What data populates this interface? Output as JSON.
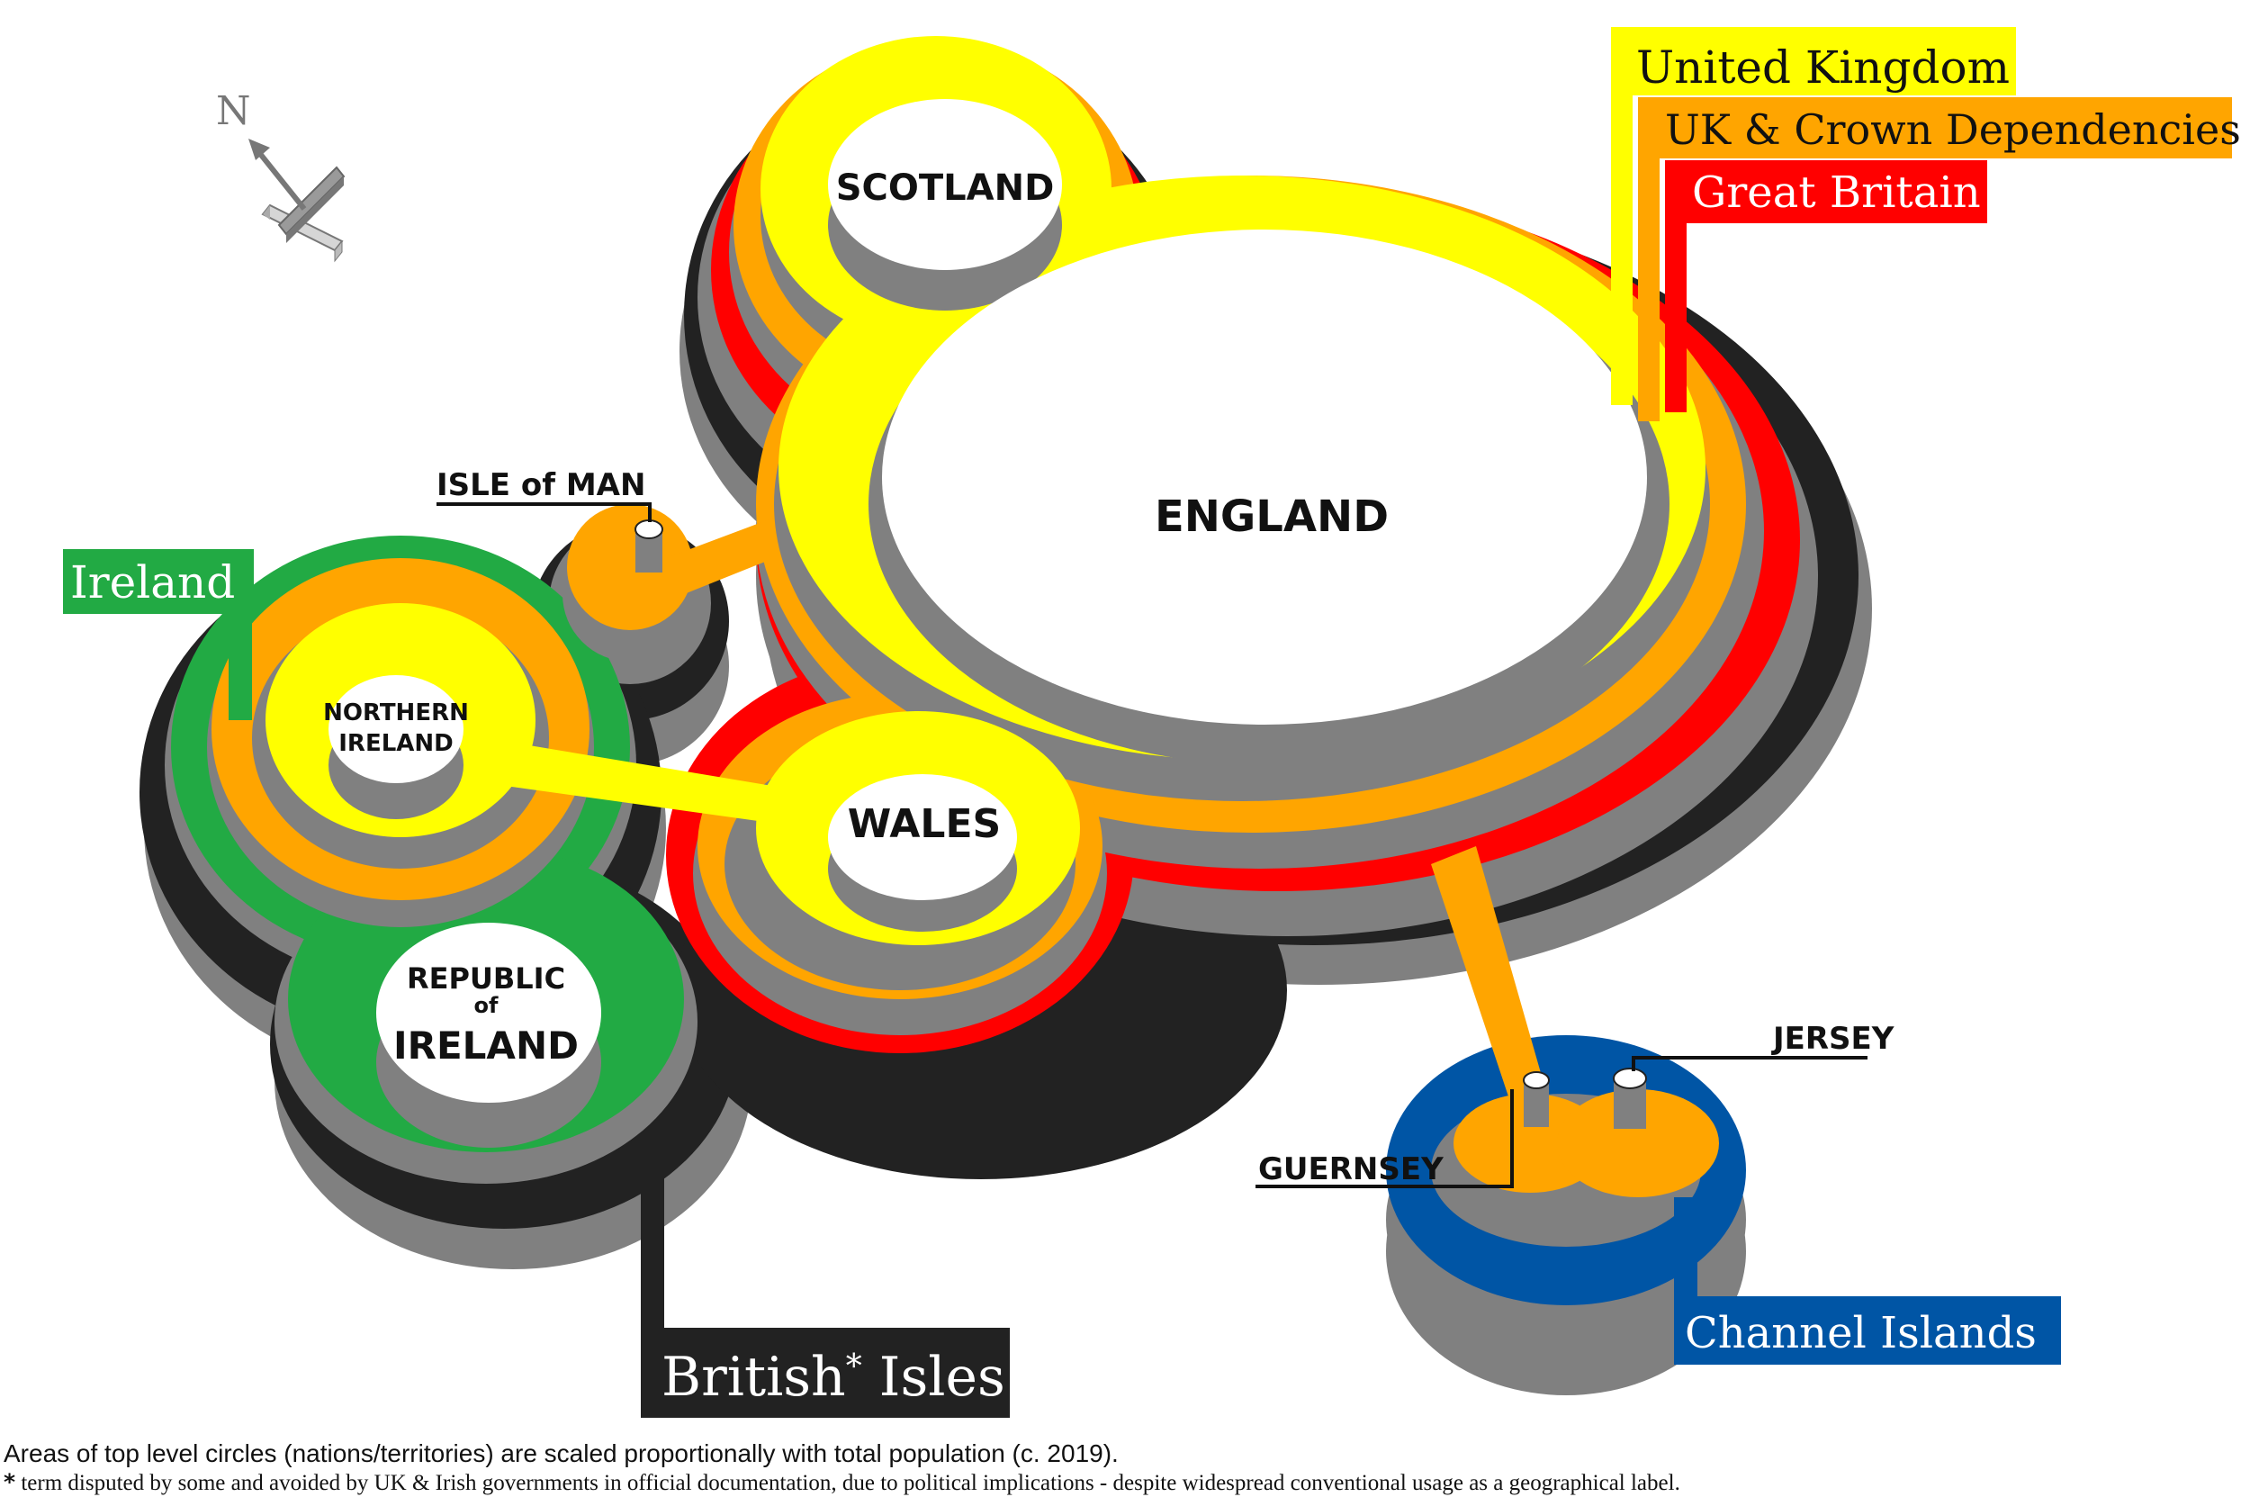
{
  "groups": {
    "united_kingdom": {
      "label": "United Kingdom",
      "color": "#ffff00"
    },
    "uk_crown_dependencies": {
      "label": "UK & Crown Dependencies",
      "color": "#ffa500"
    },
    "great_britain": {
      "label": "Great Britain",
      "color": "#ff0000"
    },
    "ireland": {
      "label": "Ireland",
      "color": "#22aa44"
    },
    "british_isles": {
      "label": "British",
      "asterisk": "*",
      "label_rest": " Isles",
      "color": "#222222"
    },
    "channel_islands": {
      "label": "Channel Islands",
      "color": "#0055a5"
    }
  },
  "nations": {
    "england": "ENGLAND",
    "scotland": "SCOTLAND",
    "wales": "WALES",
    "northern_ireland_line1": "NORTHERN",
    "northern_ireland_line2": "IRELAND",
    "republic_line1": "REPUBLIC",
    "republic_line2": "of",
    "republic_line3": "IRELAND",
    "isle_of_man": "ISLE of MAN",
    "jersey": "JERSEY",
    "guernsey": "GUERNSEY"
  },
  "compass": {
    "label": "N"
  },
  "notes": {
    "scaling": "Areas of top level circles (nations/territories) are scaled proportionally with total population (c. 2019).",
    "asterisk": "*",
    "disclaimer": "term disputed by some and avoided by UK & Irish governments in official documentation, due to political implications - despite widespread conventional usage as a geographical label."
  },
  "colors": {
    "shadow": "#808080",
    "node": "#ffffff",
    "outline": "#000000"
  }
}
